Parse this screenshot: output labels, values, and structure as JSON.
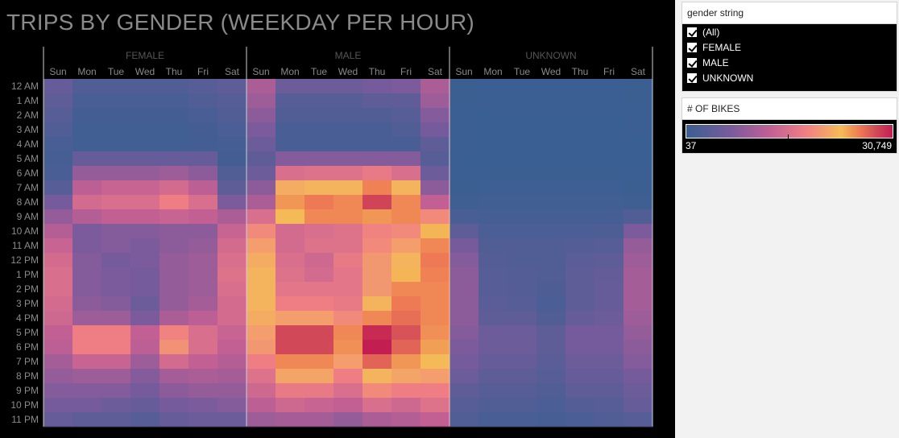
{
  "dashboard": {
    "title": "TRIPS BY GENDER (WEEKDAY PER HOUR)"
  },
  "filter": {
    "title": "gender string",
    "items": [
      {
        "label": "(All)",
        "checked": true
      },
      {
        "label": "FEMALE",
        "checked": true
      },
      {
        "label": "MALE",
        "checked": true
      },
      {
        "label": "UNKNOWN",
        "checked": true
      }
    ]
  },
  "legend": {
    "title": "# OF BIKES",
    "min_label": "37",
    "max_label": "30,749",
    "colors": [
      "#3a5f92",
      "#7b5b9c",
      "#c05f94",
      "#f07f83",
      "#f5bb57",
      "#ee7a55",
      "#d14a58",
      "#c31e52"
    ]
  },
  "chart_data": {
    "type": "heatmap",
    "title": "TRIPS BY GENDER (WEEKDAY PER HOUR)",
    "groups": [
      "FEMALE",
      "MALE",
      "UNKNOWN"
    ],
    "days": [
      "Sun",
      "Mon",
      "Tue",
      "Wed",
      "Thu",
      "Fri",
      "Sat"
    ],
    "hours": [
      "12 AM",
      "1 AM",
      "2 AM",
      "3 AM",
      "4 AM",
      "5 AM",
      "6 AM",
      "7 AM",
      "8 AM",
      "9 AM",
      "10 AM",
      "11 AM",
      "12 PM",
      "1 PM",
      "2 PM",
      "3 PM",
      "4 PM",
      "5 PM",
      "6 PM",
      "7 PM",
      "8 PM",
      "9 PM",
      "10 PM",
      "11 PM"
    ],
    "value_range": [
      37,
      30749
    ],
    "colorbar_label": "# OF BIKES",
    "values": {
      "FEMALE": [
        [
          3000,
          1500,
          1500,
          1500,
          1500,
          2000,
          2500
        ],
        [
          2500,
          1000,
          1000,
          1000,
          1000,
          1500,
          2000
        ],
        [
          2000,
          700,
          700,
          700,
          700,
          1000,
          1500
        ],
        [
          1500,
          500,
          500,
          500,
          500,
          700,
          1200
        ],
        [
          1000,
          500,
          500,
          500,
          500,
          600,
          800
        ],
        [
          800,
          3000,
          3000,
          3000,
          3000,
          3000,
          700
        ],
        [
          1000,
          6000,
          6000,
          6000,
          6500,
          5500,
          1500
        ],
        [
          2000,
          8500,
          9500,
          9500,
          10500,
          8500,
          2500
        ],
        [
          4000,
          10500,
          11000,
          11000,
          13000,
          11000,
          4500
        ],
        [
          6000,
          8000,
          9000,
          9000,
          9500,
          9000,
          7500
        ],
        [
          8000,
          4500,
          5000,
          5000,
          5500,
          5500,
          9500
        ],
        [
          9500,
          4500,
          5000,
          4500,
          5500,
          6000,
          10500
        ],
        [
          10500,
          5000,
          4000,
          4500,
          6000,
          6500,
          11000
        ],
        [
          11000,
          5000,
          4500,
          4000,
          6000,
          6500,
          11500
        ],
        [
          11000,
          5000,
          4500,
          4000,
          6000,
          6500,
          11000
        ],
        [
          10500,
          5500,
          5000,
          3500,
          6000,
          7000,
          10500
        ],
        [
          10000,
          6500,
          6500,
          4500,
          7500,
          8500,
          10500
        ],
        [
          9000,
          13000,
          13000,
          9000,
          13500,
          11000,
          9500
        ],
        [
          8500,
          13000,
          13000,
          8500,
          14500,
          11000,
          9000
        ],
        [
          7000,
          9500,
          9500,
          6500,
          10500,
          9000,
          8000
        ],
        [
          6000,
          6500,
          6500,
          5000,
          7000,
          7500,
          7000
        ],
        [
          5000,
          5000,
          5000,
          4000,
          5500,
          6000,
          6000
        ],
        [
          4000,
          4000,
          3500,
          3000,
          4000,
          4500,
          5000
        ],
        [
          3000,
          2500,
          2500,
          2000,
          3000,
          3500,
          3500
        ]
      ],
      "MALE": [
        [
          7500,
          3500,
          3500,
          3500,
          4000,
          4500,
          7500
        ],
        [
          6500,
          2000,
          2000,
          2000,
          2500,
          2500,
          6500
        ],
        [
          5500,
          1500,
          1500,
          1500,
          1500,
          2000,
          5000
        ],
        [
          4500,
          1000,
          1000,
          1000,
          1000,
          1500,
          4000
        ],
        [
          3500,
          1000,
          1000,
          1000,
          1000,
          1000,
          2500
        ],
        [
          2500,
          5000,
          5000,
          5000,
          5000,
          5000,
          2000
        ],
        [
          3500,
          11000,
          11500,
          11500,
          12500,
          11000,
          3500
        ],
        [
          5500,
          16500,
          17000,
          17000,
          21500,
          17000,
          5500
        ],
        [
          7500,
          20000,
          22000,
          21000,
          27000,
          21000,
          9000
        ],
        [
          11000,
          17500,
          21000,
          21000,
          20000,
          21000,
          14000
        ],
        [
          14000,
          10500,
          11000,
          11500,
          13500,
          14000,
          18000
        ],
        [
          15500,
          10500,
          11500,
          11500,
          14000,
          15500,
          21000
        ],
        [
          16500,
          11000,
          10000,
          12500,
          15000,
          17000,
          22000
        ],
        [
          17000,
          11500,
          10500,
          12000,
          15000,
          18000,
          21500
        ],
        [
          17000,
          12000,
          12000,
          12000,
          15000,
          21000,
          21000
        ],
        [
          17000,
          13000,
          13000,
          12500,
          17000,
          22000,
          21000
        ],
        [
          16500,
          15500,
          15500,
          14000,
          21000,
          23000,
          21000
        ],
        [
          15500,
          26500,
          26500,
          21000,
          29500,
          25500,
          20500
        ],
        [
          15000,
          26500,
          26500,
          20500,
          30749,
          24000,
          19500
        ],
        [
          13000,
          21000,
          21000,
          15500,
          24000,
          20000,
          17500
        ],
        [
          11500,
          16000,
          16000,
          13000,
          17000,
          16000,
          15500
        ],
        [
          10000,
          12500,
          12500,
          11000,
          14000,
          13000,
          13000
        ],
        [
          8500,
          10000,
          9500,
          9000,
          11000,
          10000,
          11500
        ],
        [
          6500,
          7000,
          7000,
          6000,
          7500,
          8000,
          9000
        ]
      ],
      "UNKNOWN": [
        [
          200,
          100,
          100,
          100,
          100,
          100,
          200
        ],
        [
          150,
          80,
          80,
          80,
          80,
          80,
          150
        ],
        [
          120,
          60,
          60,
          60,
          60,
          60,
          120
        ],
        [
          100,
          50,
          50,
          50,
          50,
          50,
          90
        ],
        [
          80,
          40,
          40,
          40,
          40,
          40,
          70
        ],
        [
          60,
          70,
          70,
          70,
          70,
          70,
          60
        ],
        [
          100,
          150,
          150,
          150,
          150,
          150,
          100
        ],
        [
          200,
          300,
          300,
          300,
          300,
          300,
          200
        ],
        [
          400,
          500,
          500,
          500,
          550,
          500,
          400
        ],
        [
          1000,
          800,
          800,
          800,
          800,
          800,
          1500
        ],
        [
          2500,
          1200,
          1200,
          1200,
          1200,
          1300,
          4500
        ],
        [
          4000,
          1500,
          1500,
          1500,
          1800,
          2000,
          6000
        ],
        [
          5000,
          1800,
          1600,
          1600,
          2200,
          2500,
          6500
        ],
        [
          5500,
          2000,
          1800,
          1600,
          2500,
          2800,
          7000
        ],
        [
          5500,
          2000,
          1800,
          1400,
          2500,
          3000,
          7000
        ],
        [
          5500,
          2200,
          2000,
          1200,
          2500,
          3000,
          7000
        ],
        [
          5500,
          2500,
          2500,
          1500,
          3000,
          3500,
          6500
        ],
        [
          5000,
          3500,
          3500,
          2500,
          4000,
          4000,
          6000
        ],
        [
          4500,
          3500,
          3500,
          2500,
          4000,
          4000,
          5500
        ],
        [
          4000,
          3000,
          3000,
          2200,
          3500,
          3500,
          5000
        ],
        [
          3500,
          2500,
          2500,
          2000,
          3000,
          3000,
          4000
        ],
        [
          2500,
          2000,
          2000,
          1600,
          2500,
          2500,
          3500
        ],
        [
          2000,
          1500,
          1500,
          1200,
          1800,
          2000,
          3000
        ],
        [
          1500,
          1000,
          1000,
          900,
          1200,
          1500,
          2000
        ]
      ]
    }
  }
}
